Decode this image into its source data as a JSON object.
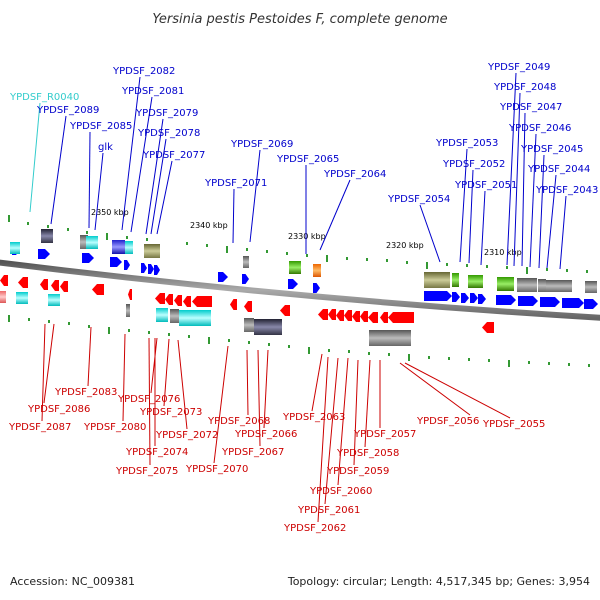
{
  "title": "Yersinia pestis Pestoides F, complete genome",
  "footer": {
    "accession": "Accession: NC_009381",
    "summary": "Topology: circular; Length: 4,517,345 bp; Genes: 3,954"
  },
  "colors": {
    "forward": "#0000ff",
    "reverse": "#ff0000",
    "rna": "#33cccc",
    "backbone": "#888888",
    "tick": "#339933"
  },
  "ticks": [
    "2350 kbp",
    "2340 kbp",
    "2330 kbp",
    "2320 kbp",
    "2310 kbp"
  ],
  "forward_labels": [
    "YPDSF_R0040",
    "YPDSF_2089",
    "YPDSF_2085",
    "glk",
    "YPDSF_2082",
    "YPDSF_2081",
    "YPDSF_2079",
    "YPDSF_2078",
    "YPDSF_2077",
    "YPDSF_2069",
    "YPDSF_2071",
    "YPDSF_2065",
    "YPDSF_2064",
    "YPDSF_2054",
    "YPDSF_2053",
    "YPDSF_2052",
    "YPDSF_2051",
    "YPDSF_2049",
    "YPDSF_2048",
    "YPDSF_2047",
    "YPDSF_2046",
    "YPDSF_2045",
    "YPDSF_2044",
    "YPDSF_2043"
  ],
  "reverse_labels": [
    "YPDSF_2083",
    "YPDSF_2086",
    "YPDSF_2087",
    "YPDSF_2080",
    "YPDSF_2076",
    "YPDSF_2073",
    "YPDSF_2072",
    "YPDSF_2074",
    "YPDSF_2075",
    "YPDSF_2070",
    "YPDSF_2068",
    "YPDSF_2066",
    "YPDSF_2067",
    "YPDSF_2063",
    "YPDSF_2057",
    "YPDSF_2058",
    "YPDSF_2059",
    "YPDSF_2060",
    "YPDSF_2061",
    "YPDSF_2062",
    "YPDSF_2056",
    "YPDSF_2055"
  ]
}
